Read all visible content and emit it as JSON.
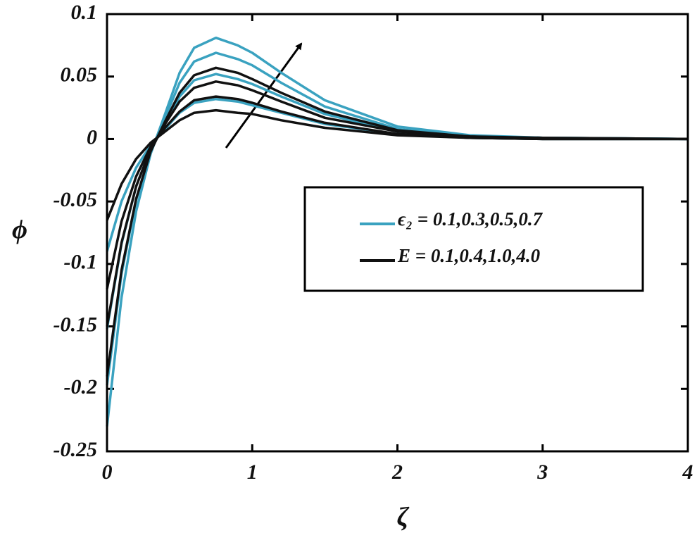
{
  "chart_data": {
    "type": "line",
    "xlabel": "ζ",
    "ylabel": "ϕ",
    "x": [
      0,
      0.1,
      0.2,
      0.3,
      0.4,
      0.5,
      0.6,
      0.75,
      0.9,
      1.0,
      1.2,
      1.5,
      2.0,
      2.5,
      3.0,
      4.0
    ],
    "xlim": [
      0,
      4
    ],
    "xticks": [
      0,
      1,
      2,
      3,
      4
    ],
    "ylim": [
      -0.25,
      0.1
    ],
    "yticks": [
      0.1,
      0.05,
      0,
      -0.05,
      -0.1,
      -0.15,
      -0.2,
      -0.25
    ],
    "legend": "center-right",
    "series": [
      {
        "name": "ϵ₂ = 0.1,0.3,0.5,0.7",
        "color": "#3aa2c0",
        "curves": [
          [
            -0.23,
            -0.127,
            -0.058,
            -0.012,
            0.02,
            0.053,
            0.073,
            0.081,
            0.075,
            0.069,
            0.053,
            0.031,
            0.01,
            0.003,
            0.001,
            0
          ],
          [
            -0.197,
            -0.108,
            -0.049,
            -0.01,
            0.017,
            0.045,
            0.062,
            0.069,
            0.064,
            0.059,
            0.045,
            0.026,
            0.008,
            0.002,
            0.001,
            0
          ],
          [
            -0.152,
            -0.084,
            -0.038,
            -0.008,
            0.013,
            0.034,
            0.047,
            0.052,
            0.048,
            0.044,
            0.034,
            0.02,
            0.006,
            0.002,
            0.001,
            0
          ],
          [
            -0.09,
            -0.05,
            -0.023,
            -0.005,
            0.008,
            0.021,
            0.029,
            0.032,
            0.03,
            0.027,
            0.021,
            0.012,
            0.004,
            0.001,
            0,
            0
          ]
        ]
      },
      {
        "name": "E = 0.1,0.4,1.0,4.0",
        "color": "#111111",
        "curves": [
          [
            -0.065,
            -0.036,
            -0.016,
            -0.003,
            0.006,
            0.015,
            0.021,
            0.023,
            0.021,
            0.02,
            0.015,
            0.009,
            0.003,
            0.001,
            0,
            0
          ],
          [
            -0.12,
            -0.066,
            -0.03,
            -0.006,
            0.009,
            0.022,
            0.031,
            0.034,
            0.032,
            0.029,
            0.022,
            0.013,
            0.004,
            0.001,
            0,
            0
          ],
          [
            -0.15,
            -0.083,
            -0.038,
            -0.008,
            0.012,
            0.03,
            0.041,
            0.046,
            0.043,
            0.039,
            0.03,
            0.017,
            0.006,
            0.002,
            0,
            0
          ],
          [
            -0.19,
            -0.105,
            -0.048,
            -0.01,
            0.014,
            0.037,
            0.051,
            0.057,
            0.053,
            0.048,
            0.037,
            0.022,
            0.007,
            0.002,
            0.001,
            0
          ]
        ]
      }
    ]
  }
}
